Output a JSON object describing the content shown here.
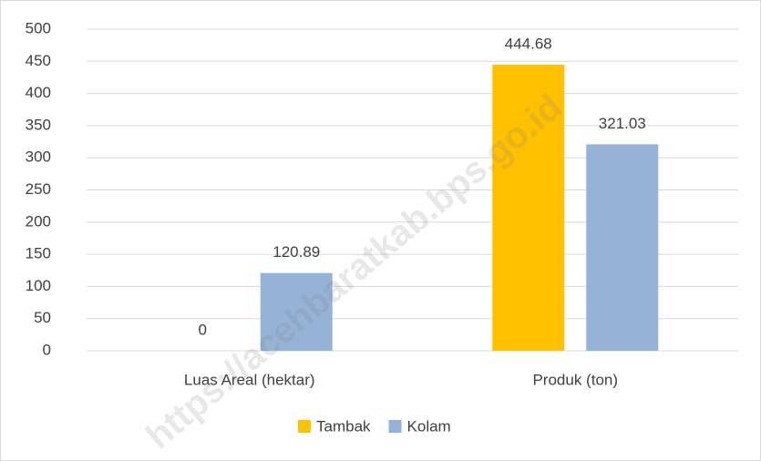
{
  "chart_data": {
    "type": "bar",
    "categories": [
      "Luas Areal (hektar)",
      "Produk (ton)"
    ],
    "series": [
      {
        "name": "Tambak",
        "color": "#ffc000",
        "values": [
          0,
          444.68
        ]
      },
      {
        "name": "Kolam",
        "color": "#95b3d7",
        "values": [
          120.89,
          321.03
        ]
      }
    ],
    "ylim": [
      0,
      500
    ],
    "yticks": [
      0,
      50,
      100,
      150,
      200,
      250,
      300,
      350,
      400,
      450,
      500
    ],
    "grid": true,
    "legend": "bottom",
    "watermark": "https://acehbaratkab.bps.go.id"
  }
}
